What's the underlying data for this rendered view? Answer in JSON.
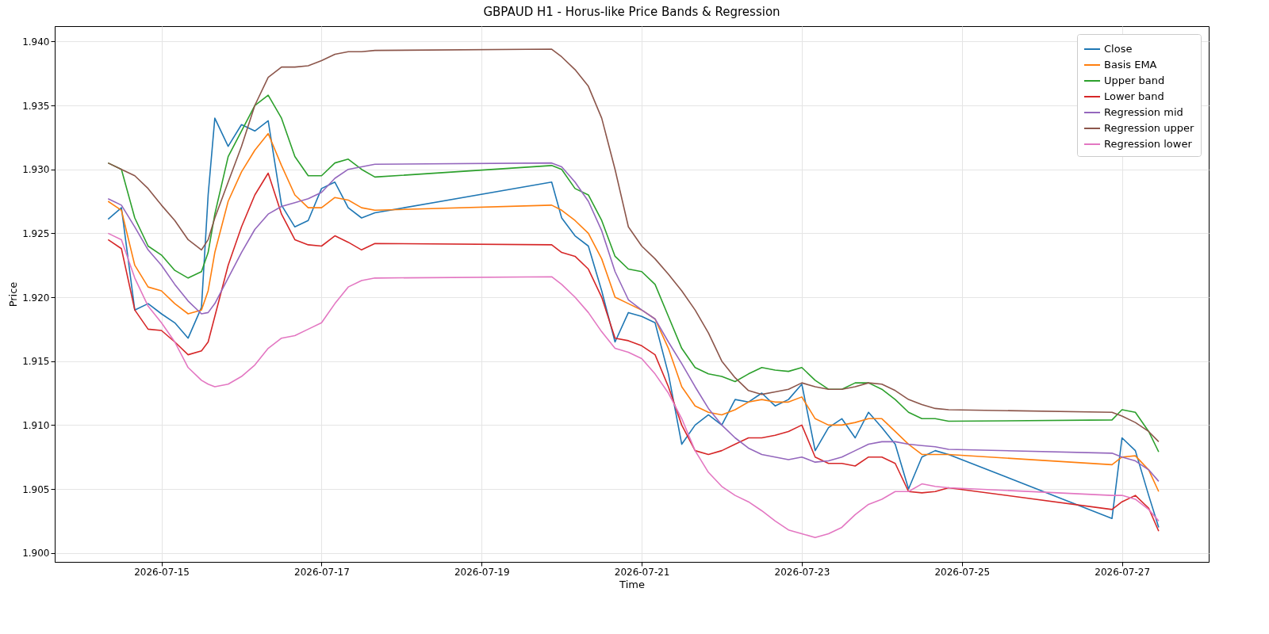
{
  "chart_data": {
    "type": "line",
    "title": "GBPAUD H1 - Horus-like Price Bands & Regression",
    "xlabel": "Time",
    "ylabel": "Price",
    "x": [
      "2026-07-14T08:00",
      "2026-07-14T12:00",
      "2026-07-14T16:00",
      "2026-07-14T20:00",
      "2026-07-15T00:00",
      "2026-07-15T04:00",
      "2026-07-15T08:00",
      "2026-07-15T12:00",
      "2026-07-15T14:00",
      "2026-07-15T16:00",
      "2026-07-15T20:00",
      "2026-07-16T00:00",
      "2026-07-16T04:00",
      "2026-07-16T08:00",
      "2026-07-16T12:00",
      "2026-07-16T16:00",
      "2026-07-16T20:00",
      "2026-07-17T00:00",
      "2026-07-17T04:00",
      "2026-07-17T08:00",
      "2026-07-17T12:00",
      "2026-07-17T16:00",
      "2026-07-19T21:00",
      "2026-07-20T00:00",
      "2026-07-20T04:00",
      "2026-07-20T08:00",
      "2026-07-20T12:00",
      "2026-07-20T16:00",
      "2026-07-20T20:00",
      "2026-07-21T00:00",
      "2026-07-21T04:00",
      "2026-07-21T08:00",
      "2026-07-21T12:00",
      "2026-07-21T16:00",
      "2026-07-21T20:00",
      "2026-07-22T00:00",
      "2026-07-22T04:00",
      "2026-07-22T08:00",
      "2026-07-22T12:00",
      "2026-07-22T16:00",
      "2026-07-22T20:00",
      "2026-07-23T00:00",
      "2026-07-23T04:00",
      "2026-07-23T08:00",
      "2026-07-23T12:00",
      "2026-07-23T16:00",
      "2026-07-23T20:00",
      "2026-07-24T00:00",
      "2026-07-24T04:00",
      "2026-07-24T08:00",
      "2026-07-24T12:00",
      "2026-07-24T16:00",
      "2026-07-24T20:00",
      "2026-07-26T21:00",
      "2026-07-27T00:00",
      "2026-07-27T04:00",
      "2026-07-27T08:00",
      "2026-07-27T11:00"
    ],
    "series": [
      {
        "name": "Close",
        "color": "#1f77b4",
        "values": [
          1.9261,
          1.927,
          1.919,
          1.9195,
          1.9187,
          1.918,
          1.9168,
          1.9192,
          1.928,
          1.934,
          1.9318,
          1.9335,
          1.933,
          1.9338,
          1.9272,
          1.9255,
          1.926,
          1.9285,
          1.929,
          1.927,
          1.9262,
          1.9266,
          1.929,
          1.9262,
          1.9248,
          1.924,
          1.9205,
          1.9165,
          1.9188,
          1.9185,
          1.918,
          1.914,
          1.9085,
          1.91,
          1.9108,
          1.91,
          1.912,
          1.9118,
          1.9125,
          1.9115,
          1.912,
          1.9132,
          1.908,
          1.9098,
          1.9105,
          1.909,
          1.911,
          1.9098,
          1.9085,
          1.905,
          1.9075,
          1.908,
          1.9077,
          1.9027,
          1.909,
          1.908,
          1.9045,
          1.902
        ]
      },
      {
        "name": "Basis EMA",
        "color": "#ff7f0e",
        "values": [
          1.9275,
          1.9268,
          1.9225,
          1.9208,
          1.9205,
          1.9195,
          1.9187,
          1.919,
          1.9205,
          1.9235,
          1.9275,
          1.9298,
          1.9315,
          1.9328,
          1.9303,
          1.928,
          1.927,
          1.927,
          1.9278,
          1.9276,
          1.927,
          1.9268,
          1.9272,
          1.9268,
          1.926,
          1.925,
          1.923,
          1.92,
          1.9195,
          1.919,
          1.9183,
          1.916,
          1.913,
          1.9115,
          1.911,
          1.9108,
          1.9112,
          1.9118,
          1.912,
          1.9118,
          1.9118,
          1.9122,
          1.9105,
          1.91,
          1.91,
          1.9102,
          1.9105,
          1.9105,
          1.9095,
          1.9085,
          1.9077,
          1.9077,
          1.9077,
          1.9069,
          1.9075,
          1.9076,
          1.9065,
          1.9048
        ]
      },
      {
        "name": "Upper band",
        "color": "#2ca02c",
        "values": [
          1.9305,
          1.93,
          1.9262,
          1.924,
          1.9233,
          1.9221,
          1.9215,
          1.922,
          1.9235,
          1.9265,
          1.931,
          1.933,
          1.935,
          1.9358,
          1.934,
          1.931,
          1.9295,
          1.9295,
          1.9305,
          1.9308,
          1.93,
          1.9294,
          1.9303,
          1.93,
          1.9285,
          1.928,
          1.926,
          1.9232,
          1.9222,
          1.922,
          1.921,
          1.9185,
          1.916,
          1.9145,
          1.914,
          1.9138,
          1.9134,
          1.914,
          1.9145,
          1.9143,
          1.9142,
          1.9145,
          1.9135,
          1.9128,
          1.9128,
          1.9133,
          1.9133,
          1.9128,
          1.912,
          1.911,
          1.9105,
          1.9105,
          1.9103,
          1.9104,
          1.9112,
          1.911,
          1.9095,
          1.9079
        ]
      },
      {
        "name": "Lower band",
        "color": "#d62728",
        "values": [
          1.9245,
          1.9238,
          1.919,
          1.9175,
          1.9174,
          1.9165,
          1.9155,
          1.9158,
          1.9165,
          1.9185,
          1.9225,
          1.9255,
          1.928,
          1.9297,
          1.9265,
          1.9245,
          1.9241,
          1.924,
          1.9248,
          1.9243,
          1.9237,
          1.9242,
          1.9241,
          1.9235,
          1.9232,
          1.9222,
          1.92,
          1.9168,
          1.9166,
          1.9162,
          1.9155,
          1.913,
          1.91,
          1.908,
          1.9077,
          1.908,
          1.9085,
          1.909,
          1.909,
          1.9092,
          1.9095,
          1.91,
          1.9075,
          1.907,
          1.907,
          1.9068,
          1.9075,
          1.9075,
          1.907,
          1.9048,
          1.9047,
          1.9048,
          1.9051,
          1.9034,
          1.904,
          1.9045,
          1.9035,
          1.9017
        ]
      },
      {
        "name": "Regression mid",
        "color": "#9467bd",
        "values": [
          1.9277,
          1.9272,
          1.9255,
          1.9237,
          1.9225,
          1.921,
          1.9197,
          1.9187,
          1.9188,
          1.9195,
          1.9215,
          1.9235,
          1.9253,
          1.9265,
          1.9271,
          1.9274,
          1.9277,
          1.9282,
          1.9293,
          1.93,
          1.9302,
          1.9304,
          1.9305,
          1.9302,
          1.929,
          1.9275,
          1.9252,
          1.922,
          1.9198,
          1.919,
          1.9183,
          1.9165,
          1.9148,
          1.913,
          1.9113,
          1.91,
          1.909,
          1.9082,
          1.9077,
          1.9075,
          1.9073,
          1.9075,
          1.9071,
          1.9072,
          1.9075,
          1.908,
          1.9085,
          1.9087,
          1.9087,
          1.9085,
          1.9084,
          1.9083,
          1.9081,
          1.9078,
          1.9075,
          1.9072,
          1.9065,
          1.9056
        ]
      },
      {
        "name": "Regression upper",
        "color": "#8c564b",
        "values": [
          1.9305,
          1.93,
          1.9295,
          1.9285,
          1.9272,
          1.926,
          1.9245,
          1.9237,
          1.9245,
          1.9262,
          1.929,
          1.9318,
          1.935,
          1.9372,
          1.938,
          1.938,
          1.9381,
          1.9385,
          1.939,
          1.9392,
          1.9392,
          1.9393,
          1.9394,
          1.9388,
          1.9378,
          1.9365,
          1.934,
          1.93,
          1.9255,
          1.924,
          1.923,
          1.9218,
          1.9205,
          1.919,
          1.9172,
          1.915,
          1.9137,
          1.9127,
          1.9124,
          1.9126,
          1.9128,
          1.9133,
          1.913,
          1.9128,
          1.9128,
          1.913,
          1.9133,
          1.9132,
          1.9127,
          1.912,
          1.9116,
          1.9113,
          1.9112,
          1.911,
          1.9107,
          1.9102,
          1.9095,
          1.9087
        ]
      },
      {
        "name": "Regression lower",
        "color": "#e377c2",
        "values": [
          1.925,
          1.9245,
          1.9215,
          1.9193,
          1.918,
          1.9165,
          1.9145,
          1.9135,
          1.9132,
          1.913,
          1.9132,
          1.9138,
          1.9147,
          1.916,
          1.9168,
          1.917,
          1.9175,
          1.918,
          1.9195,
          1.9208,
          1.9213,
          1.9215,
          1.9216,
          1.921,
          1.92,
          1.9188,
          1.9173,
          1.916,
          1.9157,
          1.9152,
          1.914,
          1.9125,
          1.9105,
          1.908,
          1.9063,
          1.9052,
          1.9045,
          1.904,
          1.9033,
          1.9025,
          1.9018,
          1.9015,
          1.9012,
          1.9015,
          1.902,
          1.903,
          1.9038,
          1.9042,
          1.9048,
          1.9048,
          1.9054,
          1.9052,
          1.9051,
          1.9045,
          1.9045,
          1.9042,
          1.9034,
          1.9025
        ]
      }
    ],
    "xlim": [
      "2026-07-13T16:00",
      "2026-07-28T02:00"
    ],
    "xticks": [
      "2026-07-15",
      "2026-07-17",
      "2026-07-19",
      "2026-07-21",
      "2026-07-23",
      "2026-07-25",
      "2026-07-27"
    ],
    "ylim": [
      1.8993,
      1.9412
    ],
    "yticks": [
      {
        "value": 1.9,
        "label": "1.900"
      },
      {
        "value": 1.905,
        "label": "1.905"
      },
      {
        "value": 1.91,
        "label": "1.910"
      },
      {
        "value": 1.915,
        "label": "1.915"
      },
      {
        "value": 1.92,
        "label": "1.920"
      },
      {
        "value": 1.925,
        "label": "1.925"
      },
      {
        "value": 1.93,
        "label": "1.930"
      },
      {
        "value": 1.935,
        "label": "1.935"
      },
      {
        "value": 1.94,
        "label": "1.940"
      }
    ],
    "grid": true,
    "legend": "top right",
    "line_style": "solid"
  }
}
